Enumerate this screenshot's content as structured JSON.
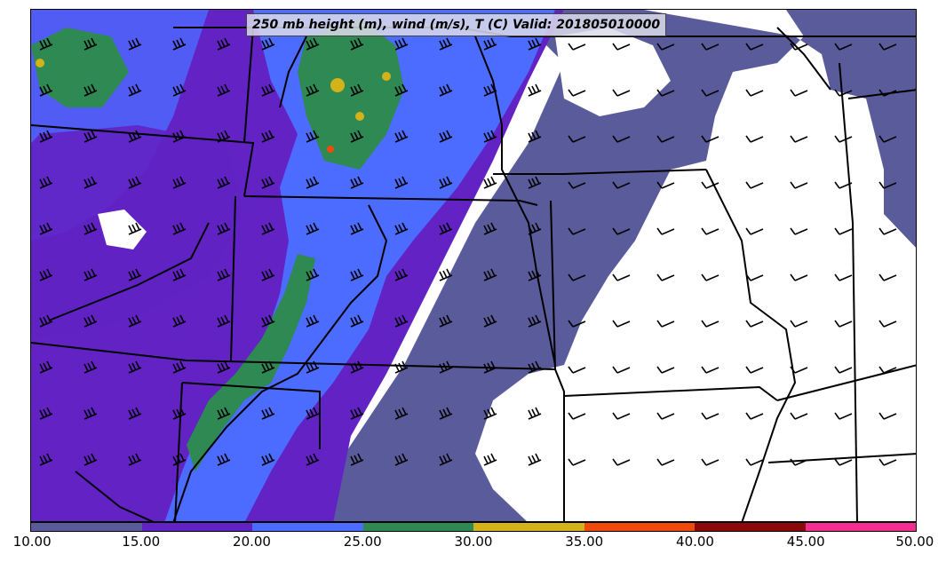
{
  "title": "250 mb height (m), wind (m/s), T (C) Valid: 201805010000",
  "colorbar": {
    "ticks": [
      "10.00",
      "15.00",
      "20.00",
      "25.00",
      "30.00",
      "35.00",
      "40.00",
      "45.00",
      "50.00"
    ],
    "colors": [
      "#5a5b9b",
      "#6222c4",
      "#4c6bff",
      "#2e8a52",
      "#d4b21a",
      "#f04a0a",
      "#8a0a0a",
      "#f22e90"
    ]
  },
  "background_color": "#ffffff",
  "border_color": "#000000"
}
